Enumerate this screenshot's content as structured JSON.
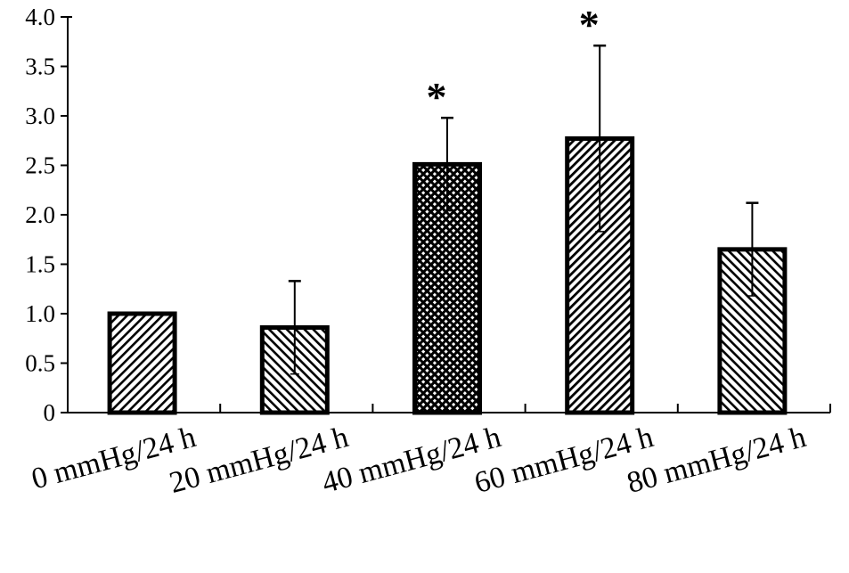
{
  "chart_data": {
    "type": "bar",
    "title": "",
    "xlabel": "",
    "ylabel": "",
    "ylim": [
      0,
      4.0
    ],
    "yticks": [
      "0",
      "0.5",
      "1.0",
      "1.5",
      "2.0",
      "2.5",
      "3.0",
      "3.5",
      "4.0"
    ],
    "categories": [
      "0 mmHg/24 h",
      "20 mmHg/24 h",
      "40 mmHg/24 h",
      "60 mmHg/24 h",
      "80 mmHg/24 h"
    ],
    "values": [
      1.0,
      0.86,
      2.51,
      2.77,
      1.65
    ],
    "error": [
      0,
      0.47,
      0.47,
      0.94,
      0.47
    ],
    "significance": [
      "",
      "",
      "*",
      "*",
      ""
    ],
    "patterns": [
      "diagonal-forward",
      "diagonal-back",
      "crosshatch",
      "diagonal-forward-dense",
      "diagonal-back"
    ],
    "grid": false,
    "colors": {
      "bar_edge": "#000000",
      "hatch": "#000000",
      "background": "#ffffff"
    }
  }
}
